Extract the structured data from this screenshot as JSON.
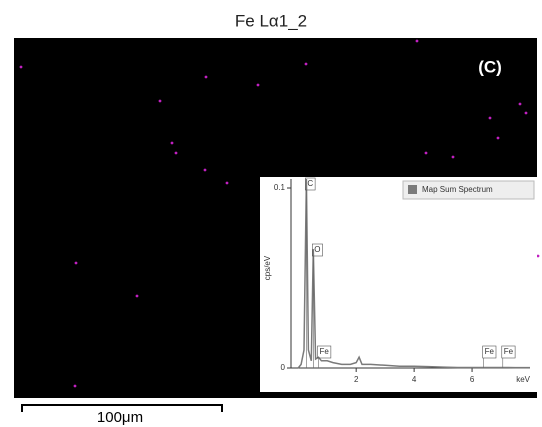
{
  "title": "Fe Lα1_2",
  "panel_label": "(C)",
  "scale_bar": "100μm",
  "chart_data": {
    "type": "line",
    "x": [
      0,
      0.1,
      0.2,
      0.28,
      0.35,
      0.45,
      0.52,
      0.6,
      0.7,
      0.8,
      1.0,
      1.2,
      1.5,
      1.8,
      2.0,
      2.1,
      2.2,
      2.5,
      3,
      3.5,
      4,
      4.5,
      5,
      5.5,
      6,
      6.4,
      7,
      7.5,
      8
    ],
    "series": [
      {
        "name": "Map Sum Spectrum",
        "color": "#7a7a7a",
        "values": [
          0,
          0.002,
          0.01,
          0.105,
          0.01,
          0.004,
          0.066,
          0.005,
          0.006,
          0.004,
          0.004,
          0.003,
          0.002,
          0.002,
          0.003,
          0.006,
          0.002,
          0.002,
          0.0015,
          0.001,
          0.001,
          0.0008,
          0.0005,
          0.0003,
          0.0003,
          0.0003,
          0.0003,
          0.0002,
          0.0002
        ]
      }
    ],
    "xlim": [
      -0.25,
      8
    ],
    "xticks": [
      2,
      4,
      6
    ],
    "xlabel": "keV",
    "ylim": [
      0,
      0.105
    ],
    "yticks": [
      0,
      0.1
    ],
    "ylabel": "cps/eV",
    "annotations": [
      {
        "label": "C",
        "x": 0.28
      },
      {
        "label": "O",
        "x": 0.52
      },
      {
        "label": "Fe",
        "x": 0.7
      },
      {
        "label": "Fe",
        "x": 6.4
      },
      {
        "label": "Fe",
        "x": 7.06
      }
    ]
  }
}
